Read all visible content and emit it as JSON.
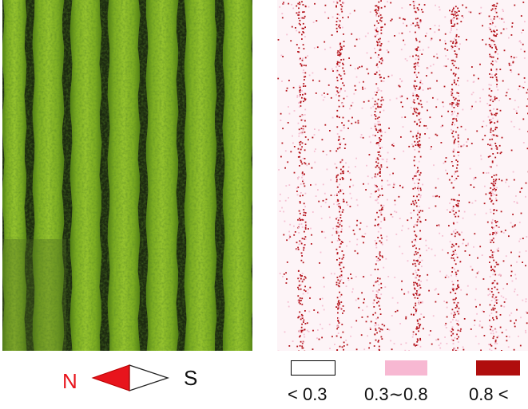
{
  "compass": {
    "north_label": "N",
    "south_label": "S",
    "arrow_color": "#e8141c"
  },
  "legend": {
    "items": [
      {
        "label": "< 0.3",
        "color": "#ffffff",
        "border": "#000000"
      },
      {
        "label": "0.3∼0.8",
        "color": "#f7b8d2",
        "border": "none"
      },
      {
        "label": "0.8 <",
        "color": "#b00e0e",
        "border": "none"
      }
    ]
  },
  "colors": {
    "crop_light": "#8fbf2a",
    "crop_mid": "#6fa01c",
    "furrow": "#1c2a10",
    "map_bg": "#fdf4f7",
    "map_light": "#f7c9d9",
    "map_dark": "#b3121a"
  }
}
